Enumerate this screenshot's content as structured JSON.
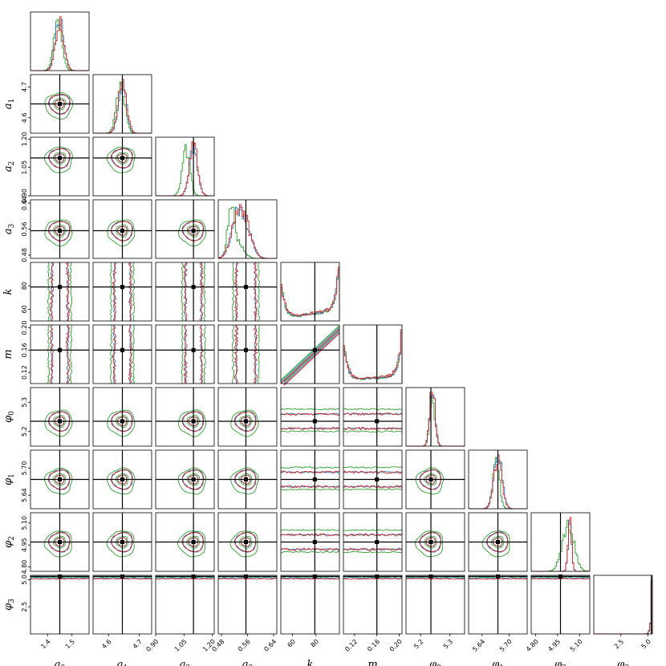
{
  "chart_data": {
    "type": "corner",
    "parameters": [
      {
        "name": "a_0",
        "label": "a",
        "sub": "0",
        "truth": 1.45,
        "range": [
          1.33,
          1.57
        ],
        "ticks": [
          {
            "v": 1.4,
            "t": "1.4"
          },
          {
            "v": 1.5,
            "t": "1.5"
          }
        ]
      },
      {
        "name": "a_1",
        "label": "a",
        "sub": "1",
        "truth": 4.645,
        "range": [
          4.55,
          4.74
        ],
        "ticks": [
          {
            "v": 4.6,
            "t": "4.6"
          },
          {
            "v": 4.7,
            "t": "4.7"
          }
        ]
      },
      {
        "name": "a_2",
        "label": "a",
        "sub": "2",
        "truth": 1.1,
        "range": [
          0.9,
          1.21
        ],
        "ticks": [
          {
            "v": 0.9,
            "t": "0.90"
          },
          {
            "v": 1.05,
            "t": "1.05"
          },
          {
            "v": 1.2,
            "t": "1.20"
          }
        ]
      },
      {
        "name": "a_3",
        "label": "a",
        "sub": "3",
        "truth": 0.555,
        "range": [
          0.47,
          0.65
        ],
        "ticks": [
          {
            "v": 0.48,
            "t": "0.48"
          },
          {
            "v": 0.56,
            "t": "0.56"
          },
          {
            "v": 0.64,
            "t": "0.64"
          }
        ]
      },
      {
        "name": "k",
        "label": "k",
        "sub": "",
        "truth": 79,
        "range": [
          50,
          100
        ],
        "ticks": [
          {
            "v": 60,
            "t": "60"
          },
          {
            "v": 80,
            "t": "80"
          }
        ]
      },
      {
        "name": "m",
        "label": "m",
        "sub": "",
        "truth": 0.16,
        "range": [
          0.1,
          0.205
        ],
        "ticks": [
          {
            "v": 0.12,
            "t": "0.12"
          },
          {
            "v": 0.16,
            "t": "0.16"
          },
          {
            "v": 0.2,
            "t": "0.20"
          }
        ]
      },
      {
        "name": "phi_0",
        "label": "φ",
        "sub": "0",
        "truth": 5.235,
        "range": [
          5.15,
          5.35
        ],
        "ticks": [
          {
            "v": 5.2,
            "t": "5.2"
          },
          {
            "v": 5.3,
            "t": "5.3"
          }
        ]
      },
      {
        "name": "phi_1",
        "label": "φ",
        "sub": "1",
        "truth": 5.675,
        "range": [
          5.61,
          5.74
        ],
        "ticks": [
          {
            "v": 5.64,
            "t": "5.64"
          },
          {
            "v": 5.7,
            "t": "5.70"
          }
        ]
      },
      {
        "name": "phi_2",
        "label": "φ",
        "sub": "2",
        "truth": 4.97,
        "range": [
          4.77,
          5.17
        ],
        "ticks": [
          {
            "v": 4.8,
            "t": "4.80"
          },
          {
            "v": 4.95,
            "t": "4.95"
          },
          {
            "v": 5.1,
            "t": "5.10"
          }
        ]
      },
      {
        "name": "phi_3",
        "label": "φ",
        "sub": "3",
        "truth": 5.3,
        "range": [
          0,
          5.4
        ],
        "ticks": [
          {
            "v": 2.5,
            "t": "2.5"
          },
          {
            "v": 5.0,
            "t": "5.0"
          }
        ]
      }
    ],
    "series": [
      {
        "color": "#2ca02c"
      },
      {
        "color": "#1f77b4"
      },
      {
        "color": "#d62728"
      }
    ],
    "truth_color": "#000000"
  }
}
